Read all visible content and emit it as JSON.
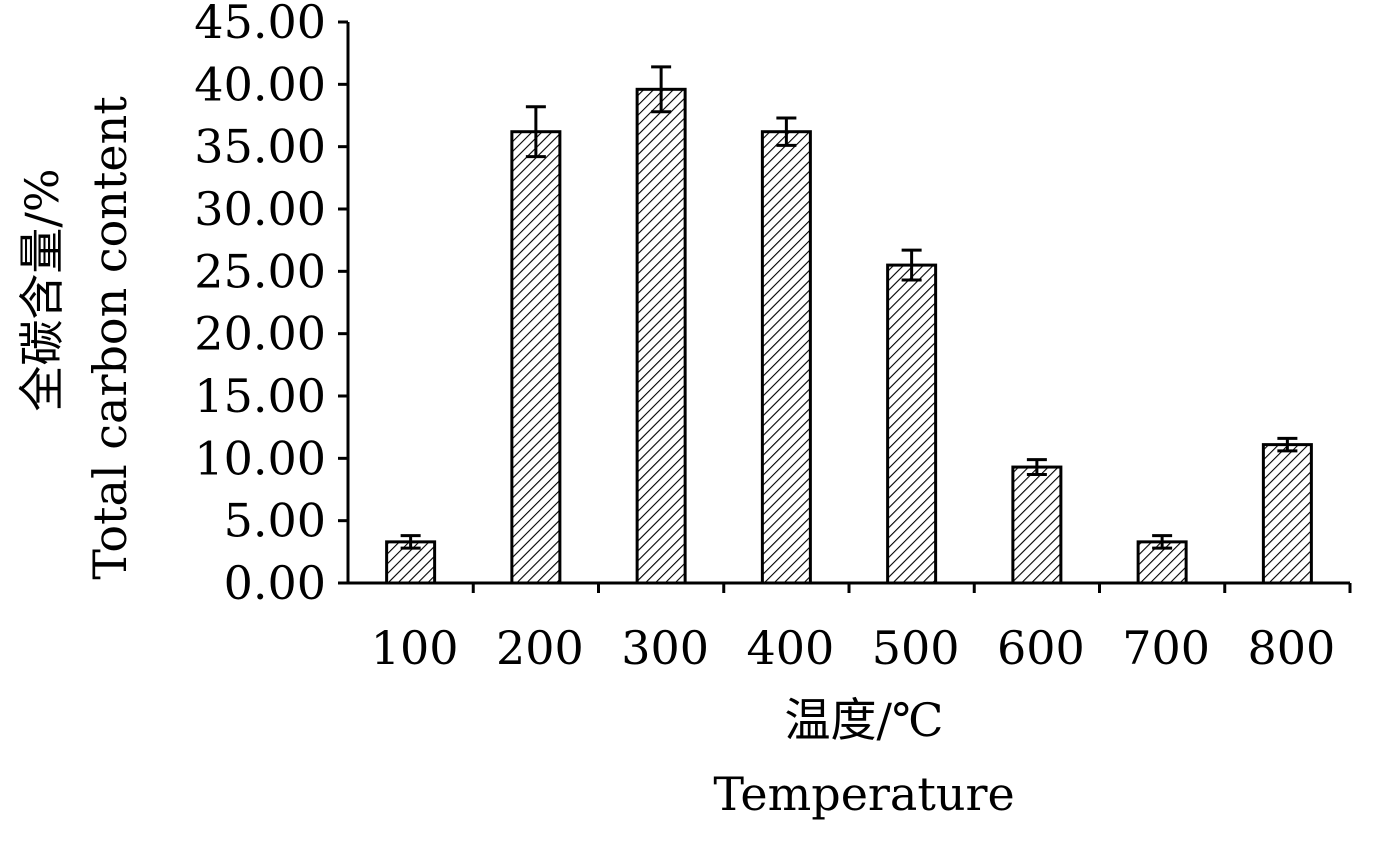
{
  "chart_data": {
    "type": "bar",
    "categories": [
      "100",
      "200",
      "300",
      "400",
      "500",
      "600",
      "700",
      "800"
    ],
    "series": [
      {
        "values": [
          3.3,
          36.2,
          39.6,
          36.2,
          25.5,
          9.3,
          3.3,
          11.1
        ],
        "error": [
          0.5,
          2.0,
          1.8,
          1.1,
          1.2,
          0.6,
          0.5,
          0.5
        ]
      }
    ],
    "ylim": [
      0,
      45
    ],
    "yticks": [
      "0.00",
      "5.00",
      "10.00",
      "15.00",
      "20.00",
      "25.00",
      "30.00",
      "35.00",
      "40.00",
      "45.00"
    ],
    "xlabel_cn": "温度/℃",
    "xlabel_en": "Temperature",
    "ylabel_cn": "全碳含量/%",
    "ylabel_en": "Total carbon content",
    "bar_fill": "hatched",
    "grid": false,
    "legend": "none"
  }
}
